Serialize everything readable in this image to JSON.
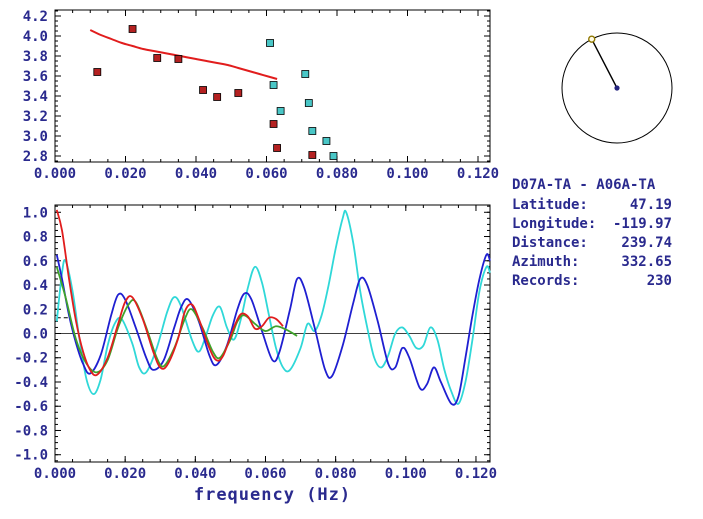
{
  "colors": {
    "text": "#2a2a8e",
    "frame": "#000000",
    "background": "#ffffff"
  },
  "info_panel": {
    "title": "D07A-TA - A06A-TA",
    "rows": [
      {
        "label": "Latitude:",
        "value": "47.19"
      },
      {
        "label": "Longitude:",
        "value": "-119.97"
      },
      {
        "label": "Distance:",
        "value": "239.74"
      },
      {
        "label": "Azimuth:",
        "value": "332.65"
      },
      {
        "label": "Records:",
        "value": "230"
      }
    ]
  },
  "azimuth_dial": {
    "azimuth_deg": 332.65,
    "circle_color": "#000000",
    "line_color": "#000000",
    "end_marker_color": "#8f7700",
    "center_dot_color": "#23237e"
  },
  "chart_data": [
    {
      "type": "scatter",
      "title": "",
      "xlabel": "",
      "ylabel": "",
      "grid": false,
      "zero_line": false,
      "xlim": [
        0,
        0.1234
      ],
      "ylim": [
        2.74,
        4.26
      ],
      "xticks": {
        "values": [
          0,
          0.02,
          0.04,
          0.06,
          0.08,
          0.1,
          0.12
        ],
        "labels": [
          "0.000",
          "0.020",
          "0.040",
          "0.060",
          "0.080",
          "0.100",
          "0.120"
        ],
        "minor_step": 0.005
      },
      "yticks": {
        "values": [
          4.2,
          4.0,
          3.8,
          3.6,
          3.4,
          3.2,
          3.0,
          2.8
        ],
        "labels": [
          "4.2",
          "4.0",
          "3.8",
          "3.6",
          "3.4",
          "3.2",
          "3.0",
          "2.8"
        ],
        "minor_step": 0.05
      },
      "series": [
        {
          "name": "dispersion-reference-curve",
          "kind": "line",
          "color": "#e11d1d",
          "width": 2,
          "points": [
            [
              0.01,
              4.06
            ],
            [
              0.013,
              4.01
            ],
            [
              0.016,
              3.97
            ],
            [
              0.019,
              3.93
            ],
            [
              0.022,
              3.9
            ],
            [
              0.025,
              3.87
            ],
            [
              0.028,
              3.85
            ],
            [
              0.031,
              3.83
            ],
            [
              0.034,
              3.81
            ],
            [
              0.037,
              3.79
            ],
            [
              0.04,
              3.77
            ],
            [
              0.043,
              3.75
            ],
            [
              0.046,
              3.73
            ],
            [
              0.049,
              3.71
            ],
            [
              0.052,
              3.68
            ],
            [
              0.055,
              3.65
            ],
            [
              0.058,
              3.62
            ],
            [
              0.061,
              3.59
            ],
            [
              0.063,
              3.57
            ]
          ]
        },
        {
          "name": "measurements-red",
          "kind": "scatter",
          "color": "#b42121",
          "points": [
            [
              0.012,
              3.64
            ],
            [
              0.022,
              4.07
            ],
            [
              0.029,
              3.78
            ],
            [
              0.035,
              3.77
            ],
            [
              0.042,
              3.46
            ],
            [
              0.046,
              3.39
            ],
            [
              0.052,
              3.43
            ],
            [
              0.062,
              3.12
            ],
            [
              0.063,
              2.88
            ],
            [
              0.073,
              2.81
            ]
          ]
        },
        {
          "name": "measurements-cyan",
          "kind": "scatter",
          "color": "#49c6c6",
          "points": [
            [
              0.061,
              3.93
            ],
            [
              0.062,
              3.51
            ],
            [
              0.064,
              3.25
            ],
            [
              0.071,
              3.62
            ],
            [
              0.072,
              3.33
            ],
            [
              0.073,
              3.05
            ],
            [
              0.077,
              2.95
            ],
            [
              0.079,
              2.8
            ]
          ]
        }
      ]
    },
    {
      "type": "line",
      "title": "",
      "xlabel": "frequency (Hz)",
      "ylabel": "",
      "grid": false,
      "zero_line": true,
      "xlim": [
        0,
        0.124
      ],
      "ylim": [
        -1.06,
        1.06
      ],
      "xticks": {
        "values": [
          0,
          0.02,
          0.04,
          0.06,
          0.08,
          0.1,
          0.12
        ],
        "labels": [
          "0.000",
          "0.020",
          "0.040",
          "0.060",
          "0.080",
          "0.100",
          "0.120"
        ],
        "minor_step": 0.005
      },
      "yticks": {
        "values": [
          1.0,
          0.8,
          0.6,
          0.4,
          0.2,
          0.0,
          -0.2,
          -0.4,
          -0.6,
          -0.8,
          -1.0
        ],
        "labels": [
          "1.0",
          "0.8",
          "0.6",
          "0.4",
          "0.2",
          "0.0",
          "-0.2",
          "-0.4",
          "-0.6",
          "-0.8",
          "-1.0"
        ],
        "minor_step": 0.05
      },
      "series": [
        {
          "name": "reference-dash",
          "kind": "line",
          "color": "#000000",
          "width": 1,
          "dash": "4 3",
          "points": [
            [
              0.0005,
              0.13
            ],
            [
              0.0045,
              0.13
            ]
          ]
        },
        {
          "name": "waveform-cyan",
          "kind": "line",
          "color": "#2fd8d8",
          "width": 1.8,
          "points": [
            [
              0.0005,
              0.1
            ],
            [
              0.002,
              0.5
            ],
            [
              0.003,
              0.6
            ],
            [
              0.005,
              0.35
            ],
            [
              0.007,
              -0.05
            ],
            [
              0.009,
              -0.38
            ],
            [
              0.011,
              -0.5
            ],
            [
              0.013,
              -0.38
            ],
            [
              0.015,
              -0.1
            ],
            [
              0.017,
              0.08
            ],
            [
              0.019,
              0.12
            ],
            [
              0.022,
              -0.08
            ],
            [
              0.024,
              -0.28
            ],
            [
              0.026,
              -0.32
            ],
            [
              0.029,
              -0.12
            ],
            [
              0.032,
              0.18
            ],
            [
              0.034,
              0.3
            ],
            [
              0.036,
              0.22
            ],
            [
              0.039,
              -0.05
            ],
            [
              0.041,
              -0.15
            ],
            [
              0.043,
              -0.02
            ],
            [
              0.045,
              0.15
            ],
            [
              0.047,
              0.22
            ],
            [
              0.049,
              0.05
            ],
            [
              0.051,
              -0.05
            ],
            [
              0.053,
              0.12
            ],
            [
              0.055,
              0.38
            ],
            [
              0.057,
              0.55
            ],
            [
              0.059,
              0.42
            ],
            [
              0.061,
              0.15
            ],
            [
              0.063,
              -0.12
            ],
            [
              0.065,
              -0.28
            ],
            [
              0.067,
              -0.3
            ],
            [
              0.07,
              -0.12
            ],
            [
              0.072,
              0.08
            ],
            [
              0.074,
              0.02
            ],
            [
              0.076,
              0.15
            ],
            [
              0.078,
              0.4
            ],
            [
              0.08,
              0.7
            ],
            [
              0.082,
              0.95
            ],
            [
              0.083,
              1.0
            ],
            [
              0.085,
              0.75
            ],
            [
              0.087,
              0.35
            ],
            [
              0.089,
              0.05
            ],
            [
              0.091,
              -0.2
            ],
            [
              0.093,
              -0.28
            ],
            [
              0.095,
              -0.18
            ],
            [
              0.097,
              0.0
            ],
            [
              0.099,
              0.05
            ],
            [
              0.101,
              -0.02
            ],
            [
              0.103,
              -0.12
            ],
            [
              0.105,
              -0.1
            ],
            [
              0.107,
              0.05
            ],
            [
              0.109,
              -0.05
            ],
            [
              0.111,
              -0.3
            ],
            [
              0.113,
              -0.48
            ],
            [
              0.115,
              -0.58
            ],
            [
              0.117,
              -0.4
            ],
            [
              0.119,
              -0.05
            ],
            [
              0.121,
              0.35
            ],
            [
              0.123,
              0.55
            ],
            [
              0.124,
              0.5
            ]
          ]
        },
        {
          "name": "waveform-blue",
          "kind": "line",
          "color": "#1f1fd1",
          "width": 1.8,
          "points": [
            [
              0.0005,
              0.65
            ],
            [
              0.002,
              0.45
            ],
            [
              0.004,
              0.15
            ],
            [
              0.006,
              -0.08
            ],
            [
              0.008,
              -0.25
            ],
            [
              0.01,
              -0.33
            ],
            [
              0.013,
              -0.18
            ],
            [
              0.016,
              0.15
            ],
            [
              0.018,
              0.32
            ],
            [
              0.02,
              0.28
            ],
            [
              0.023,
              0.05
            ],
            [
              0.026,
              -0.2
            ],
            [
              0.028,
              -0.3
            ],
            [
              0.031,
              -0.22
            ],
            [
              0.034,
              0.05
            ],
            [
              0.036,
              0.22
            ],
            [
              0.038,
              0.28
            ],
            [
              0.041,
              0.1
            ],
            [
              0.044,
              -0.18
            ],
            [
              0.046,
              -0.26
            ],
            [
              0.049,
              -0.1
            ],
            [
              0.052,
              0.2
            ],
            [
              0.054,
              0.33
            ],
            [
              0.056,
              0.28
            ],
            [
              0.059,
              0.02
            ],
            [
              0.062,
              -0.22
            ],
            [
              0.064,
              -0.15
            ],
            [
              0.067,
              0.2
            ],
            [
              0.069,
              0.45
            ],
            [
              0.071,
              0.38
            ],
            [
              0.074,
              0.05
            ],
            [
              0.077,
              -0.3
            ],
            [
              0.079,
              -0.35
            ],
            [
              0.082,
              -0.1
            ],
            [
              0.085,
              0.25
            ],
            [
              0.087,
              0.45
            ],
            [
              0.089,
              0.4
            ],
            [
              0.092,
              0.1
            ],
            [
              0.095,
              -0.25
            ],
            [
              0.097,
              -0.28
            ],
            [
              0.099,
              -0.12
            ],
            [
              0.101,
              -0.2
            ],
            [
              0.104,
              -0.45
            ],
            [
              0.106,
              -0.42
            ],
            [
              0.108,
              -0.28
            ],
            [
              0.11,
              -0.4
            ],
            [
              0.113,
              -0.58
            ],
            [
              0.115,
              -0.52
            ],
            [
              0.117,
              -0.2
            ],
            [
              0.119,
              0.15
            ],
            [
              0.121,
              0.45
            ],
            [
              0.123,
              0.65
            ],
            [
              0.124,
              0.6
            ]
          ]
        },
        {
          "name": "waveform-green",
          "kind": "line",
          "color": "#3fa32a",
          "width": 1.8,
          "points": [
            [
              0.0005,
              0.55
            ],
            [
              0.003,
              0.3
            ],
            [
              0.006,
              -0.05
            ],
            [
              0.009,
              -0.25
            ],
            [
              0.012,
              -0.32
            ],
            [
              0.015,
              -0.22
            ],
            [
              0.018,
              0.05
            ],
            [
              0.021,
              0.24
            ],
            [
              0.023,
              0.26
            ],
            [
              0.026,
              0.05
            ],
            [
              0.029,
              -0.2
            ],
            [
              0.031,
              -0.27
            ],
            [
              0.034,
              -0.12
            ],
            [
              0.037,
              0.12
            ],
            [
              0.039,
              0.2
            ],
            [
              0.042,
              0.05
            ],
            [
              0.045,
              -0.15
            ],
            [
              0.047,
              -0.2
            ],
            [
              0.05,
              -0.05
            ],
            [
              0.052,
              0.1
            ],
            [
              0.054,
              0.15
            ],
            [
              0.057,
              0.08
            ],
            [
              0.06,
              0.02
            ],
            [
              0.063,
              0.06
            ],
            [
              0.066,
              0.03
            ],
            [
              0.069,
              -0.02
            ]
          ]
        },
        {
          "name": "waveform-red",
          "kind": "line",
          "color": "#e11d1d",
          "width": 1.8,
          "points": [
            [
              0.0005,
              1.02
            ],
            [
              0.002,
              0.85
            ],
            [
              0.004,
              0.45
            ],
            [
              0.006,
              0.1
            ],
            [
              0.008,
              -0.15
            ],
            [
              0.01,
              -0.3
            ],
            [
              0.012,
              -0.34
            ],
            [
              0.015,
              -0.2
            ],
            [
              0.018,
              0.08
            ],
            [
              0.02,
              0.26
            ],
            [
              0.022,
              0.3
            ],
            [
              0.025,
              0.12
            ],
            [
              0.028,
              -0.15
            ],
            [
              0.03,
              -0.28
            ],
            [
              0.032,
              -0.26
            ],
            [
              0.035,
              -0.05
            ],
            [
              0.037,
              0.18
            ],
            [
              0.039,
              0.24
            ],
            [
              0.041,
              0.12
            ],
            [
              0.044,
              -0.12
            ],
            [
              0.046,
              -0.22
            ],
            [
              0.048,
              -0.18
            ],
            [
              0.051,
              0.05
            ],
            [
              0.053,
              0.16
            ],
            [
              0.055,
              0.14
            ],
            [
              0.057,
              0.04
            ],
            [
              0.059,
              0.06
            ],
            [
              0.061,
              0.13
            ],
            [
              0.063,
              0.12
            ],
            [
              0.065,
              0.06
            ]
          ]
        }
      ]
    }
  ]
}
